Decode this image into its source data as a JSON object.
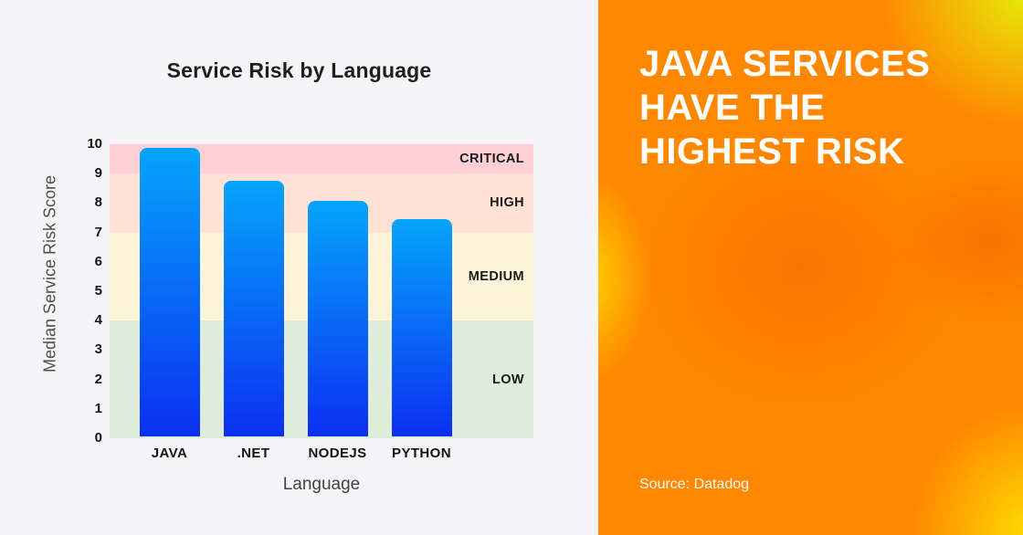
{
  "chart_data": {
    "type": "bar",
    "title": "Service Risk by Language",
    "xlabel": "Language",
    "ylabel": "Median Service Risk Score",
    "categories": [
      "JAVA",
      ".NET",
      "NODEJS",
      "PYTHON"
    ],
    "values": [
      9.8,
      8.7,
      8.0,
      7.4
    ],
    "ylim": [
      0,
      10
    ],
    "yticks": [
      0,
      1,
      2,
      3,
      4,
      5,
      6,
      7,
      8,
      9,
      10
    ],
    "grid": false,
    "legend": false,
    "bands": [
      {
        "label": "CRITICAL",
        "from": 9,
        "to": 10,
        "color": "#ffcfd6"
      },
      {
        "label": "HIGH",
        "from": 7,
        "to": 9,
        "color": "#ffe2d3"
      },
      {
        "label": "MEDIUM",
        "from": 4,
        "to": 7,
        "color": "#fdf3d8"
      },
      {
        "label": "LOW",
        "from": 0,
        "to": 4,
        "color": "#ddedda"
      }
    ],
    "bar_gradient_top": "#04a5fa",
    "bar_gradient_bottom": "#0c2ff2"
  },
  "left_panel": {
    "background": "#f5f5f7"
  },
  "right_panel": {
    "headline_lines": [
      "JAVA SERVICES",
      "HAVE THE",
      "HIGHEST RISK"
    ],
    "source": "Source: Datadog",
    "text_color": "#ffffff",
    "background_colors": [
      "#ff8800",
      "#e4f40a",
      "#ffe400",
      "#fa6400"
    ]
  }
}
